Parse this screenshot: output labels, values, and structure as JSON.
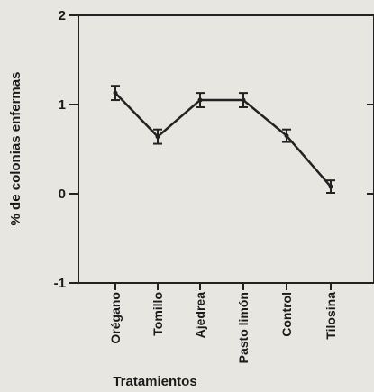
{
  "chart_data": {
    "type": "line",
    "title": "",
    "xlabel": "Tratamientos",
    "ylabel": "% de colonias enfermas",
    "categories": [
      "Orégano",
      "Tomillo",
      "Ajedrea",
      "Pasto limón",
      "Control",
      "Tilosina"
    ],
    "series": [
      {
        "values": [
          1.13,
          0.64,
          1.05,
          1.05,
          0.65,
          0.08
        ],
        "errors": [
          0.08,
          0.08,
          0.08,
          0.08,
          0.07,
          0.07
        ]
      }
    ],
    "ylim": [
      -1,
      2
    ],
    "yticks": [
      -1,
      0,
      1,
      2
    ],
    "ytick_labels": [
      "-1",
      "0",
      "1",
      "2"
    ],
    "grid": false,
    "legend": "none",
    "colors": {
      "line": "#222222",
      "axis": "#222222",
      "background": "#e8e6e0"
    }
  }
}
